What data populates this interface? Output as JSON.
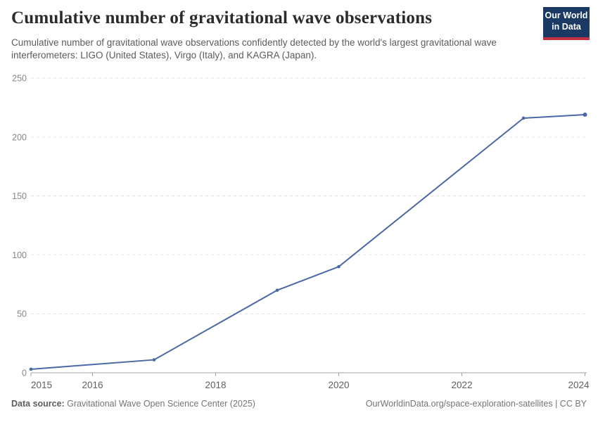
{
  "logo": {
    "line1": "Our World",
    "line2": "in Data",
    "bg_color": "#1a3a63",
    "accent_color": "#c5313f"
  },
  "chart_data": {
    "type": "line",
    "title": "Cumulative number of gravitational wave observations",
    "subtitle": "Cumulative number of gravitational wave observations confidently detected by the world's largest gravitational wave interferometers: LIGO (United States), Virgo (Italy), and KAGRA (Japan).",
    "series": [
      {
        "x": [
          2015,
          2017,
          2019,
          2020,
          2023,
          2024
        ],
        "y": [
          3,
          11,
          70,
          90,
          216,
          219
        ]
      }
    ],
    "x_ticks": [
      2015,
      2016,
      2018,
      2020,
      2022,
      2024
    ],
    "y_ticks": [
      0,
      50,
      100,
      150,
      200,
      250
    ],
    "xlim": [
      2015,
      2024
    ],
    "ylim": [
      0,
      250
    ],
    "xlabel": "",
    "ylabel": "",
    "grid": "horizontal-dashed",
    "legend": "none",
    "line_color": "#4a69a6",
    "markers": true
  },
  "footer": {
    "source_label": "Data source:",
    "source_text": " Gravitational Wave Open Science Center (2025)",
    "attribution": "OurWorldinData.org/space-exploration-satellites | CC BY"
  }
}
